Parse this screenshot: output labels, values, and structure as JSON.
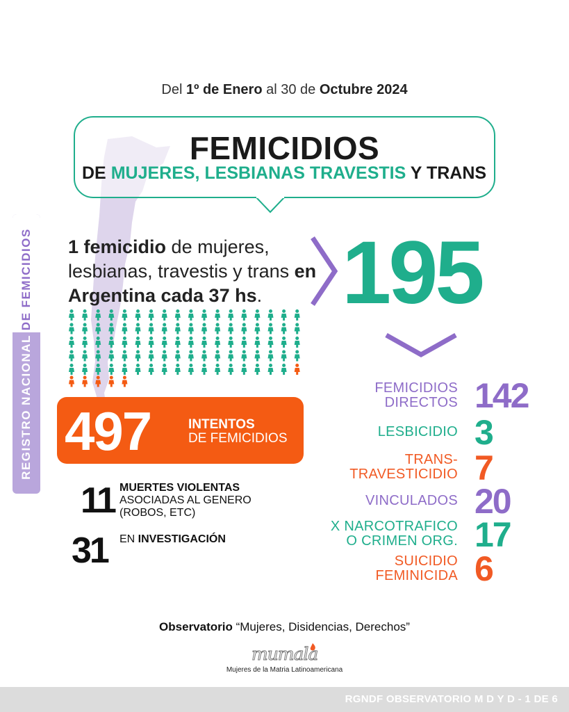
{
  "header": {
    "date_p1": "Del ",
    "date_p2": "1º de Enero",
    "date_p3": " al ",
    "date_p4": "30 de",
    "date_p5": " Octubre 2024"
  },
  "title": {
    "main": "FEMICIDIOS",
    "de": "DE ",
    "ml": "MUJERES, LESBIANAS ",
    "tv": "TRAVESTIS ",
    "tr": "Y TRANS"
  },
  "side_label": {
    "part1": "REGISTRO NACIONAL ",
    "part2": "DE FEMICIDIOS"
  },
  "rate": {
    "p1": "1 femicidio",
    "p2": " de mujeres, lesbianas, travestis y trans ",
    "p3": "en Argentina cada 37 hs",
    "p4": "."
  },
  "total": "195",
  "intentos": {
    "number": "497",
    "line1": "INTENTOS",
    "line2": "DE FEMICIDIOS"
  },
  "muertes": {
    "number": "11",
    "line1": "MUERTES VIOLENTAS",
    "line2": "ASOCIADAS AL GENERO",
    "line3": "(ROBOS, ETC)"
  },
  "investigacion": {
    "number": "31",
    "pre": "EN ",
    "bold": "INVESTIGACIÓN"
  },
  "breakdown": [
    {
      "l1": "FEMICIDIOS",
      "l2": "DIRECTOS",
      "value": "142",
      "color": "#8e6cc8"
    },
    {
      "l1": "LESBICIDIO",
      "l2": "",
      "value": "3",
      "color": "#1fae8c"
    },
    {
      "l1": "TRANS-",
      "l2": "TRAVESTICIDIO",
      "value": "7",
      "color": "#f15a24"
    },
    {
      "l1": "VINCULADOS",
      "l2": "",
      "value": "20",
      "color": "#8e6cc8"
    },
    {
      "l1": "X NARCOTRAFICO",
      "l2": "O CRIMEN ORG.",
      "value": "17",
      "color": "#1fae8c"
    },
    {
      "l1": "SUICIDIO",
      "l2": "FEMINICIDA",
      "value": "6",
      "color": "#f15a24"
    }
  ],
  "footer": {
    "obs_bold": "Observatorio",
    "obs_rest": " “Mujeres, Disidencias, Derechos”",
    "logo": "mumala",
    "tagline": "Mujeres de la Matria Latinoamericana",
    "bar_text": "RGNDF OBSERVATORIO M D Y D - 1 DE 6"
  },
  "colors": {
    "green": "#1fae8c",
    "purple": "#8e6cc8",
    "orange": "#f45b13",
    "lavender": "#b9a6dc"
  }
}
